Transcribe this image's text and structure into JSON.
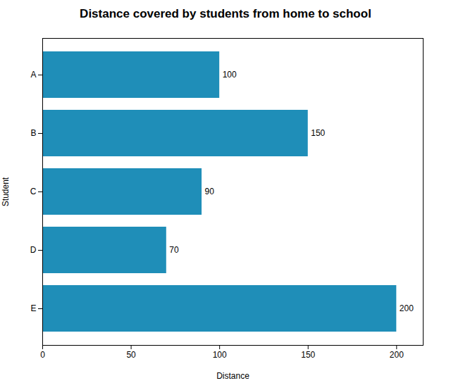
{
  "chart_data": {
    "type": "bar",
    "orientation": "horizontal",
    "title": "Distance covered by students from home to school",
    "xlabel": "Distance",
    "ylabel": "Student",
    "categories": [
      "A",
      "B",
      "C",
      "D",
      "E"
    ],
    "values": [
      100,
      150,
      90,
      70,
      200
    ],
    "color": "#1f8eb8",
    "xlim": [
      0,
      215
    ],
    "xticks": [
      0,
      50,
      100,
      150,
      200
    ],
    "data_labels": true,
    "grid": false
  }
}
